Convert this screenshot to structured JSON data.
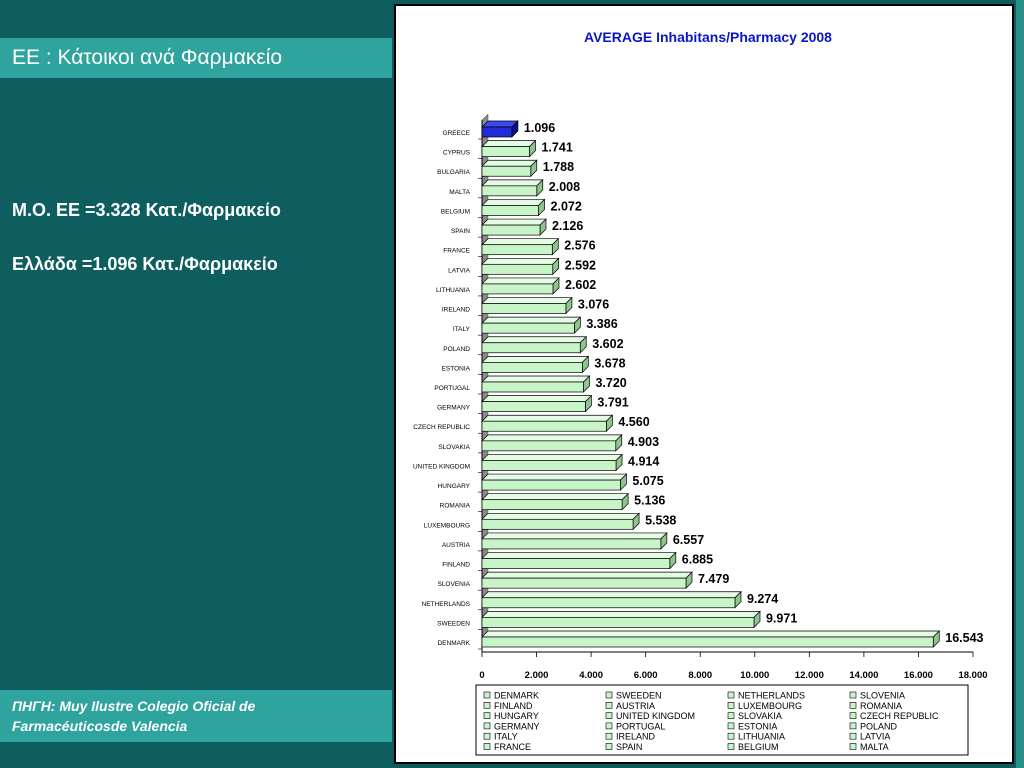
{
  "slide": {
    "title": "ΕΕ : Κάτοικοι ανά Φαρμακείο",
    "stat_eu": "Μ.Ο. ΕΕ =3.328  Κατ./Φαρμακείο",
    "stat_greece": "Ελλάδα  =1.096 Κατ./Φαρμακείο",
    "source_line1": "ΠΗΓΗ: Muy Ilustre Colegio Oficial de",
    "source_line2": "Farmacéuticosde Valencia"
  },
  "colors": {
    "background": "#0d5b5c",
    "accent_bar": "#2fa39d",
    "bar_fill": "#c8f5c8",
    "highlight_fill": "#1e2bd6",
    "title_color": "#0b16c8"
  },
  "chart_data": {
    "type": "bar",
    "orientation": "horizontal",
    "title": "AVERAGE Inhabitans/Pharmacy 2008",
    "categories": [
      "GREECE",
      "CYPRUS",
      "BULGARIA",
      "MALTA",
      "BELGIUM",
      "SPAIN",
      "FRANCE",
      "LATVIA",
      "LITHUANIA",
      "IRELAND",
      "ITALY",
      "POLAND",
      "ESTONIA",
      "PORTUGAL",
      "GERMANY",
      "CZECH REPUBLIC",
      "SLOVAKIA",
      "UNITED KINGDOM",
      "HUNGARY",
      "ROMANIA",
      "LUXEMBOURG",
      "AUSTRIA",
      "FINLAND",
      "SLOVENIA",
      "NETHERLANDS",
      "SWEEDEN",
      "DENMARK"
    ],
    "values": [
      1096,
      1741,
      1788,
      2008,
      2072,
      2126,
      2576,
      2592,
      2602,
      3076,
      3386,
      3602,
      3678,
      3720,
      3791,
      4560,
      4903,
      4914,
      5075,
      5136,
      5538,
      6557,
      6885,
      7479,
      9274,
      9971,
      16543
    ],
    "data_labels": [
      "1.096",
      "1.741",
      "1.788",
      "2.008",
      "2.072",
      "2.126",
      "2.576",
      "2.592",
      "2.602",
      "3.076",
      "3.386",
      "3.602",
      "3.678",
      "3.720",
      "3.791",
      "4.560",
      "4.903",
      "4.914",
      "5.075",
      "5.136",
      "5.538",
      "6.557",
      "6.885",
      "7.479",
      "9.274",
      "9.971",
      "16.543"
    ],
    "highlight": "GREECE",
    "xlim": [
      0,
      18000
    ],
    "x_ticks": [
      0,
      2000,
      4000,
      6000,
      8000,
      10000,
      12000,
      14000,
      16000,
      18000
    ],
    "x_tick_labels": [
      "0",
      "2.000",
      "4.000",
      "6.000",
      "8.000",
      "10.000",
      "12.000",
      "14.000",
      "16.000",
      "18.000"
    ],
    "legend_position": "bottom",
    "legend_entries": [
      "DENMARK",
      "SWEEDEN",
      "NETHERLANDS",
      "SLOVENIA",
      "FINLAND",
      "AUSTRIA",
      "LUXEMBOURG",
      "ROMANIA",
      "HUNGARY",
      "UNITED KINGDOM",
      "SLOVAKIA",
      "CZECH REPUBLIC",
      "GERMANY",
      "PORTUGAL",
      "ESTONIA",
      "POLAND",
      "ITALY",
      "IRELAND",
      "LITHUANIA",
      "LATVIA",
      "FRANCE",
      "SPAIN",
      "BELGIUM",
      "MALTA"
    ]
  }
}
